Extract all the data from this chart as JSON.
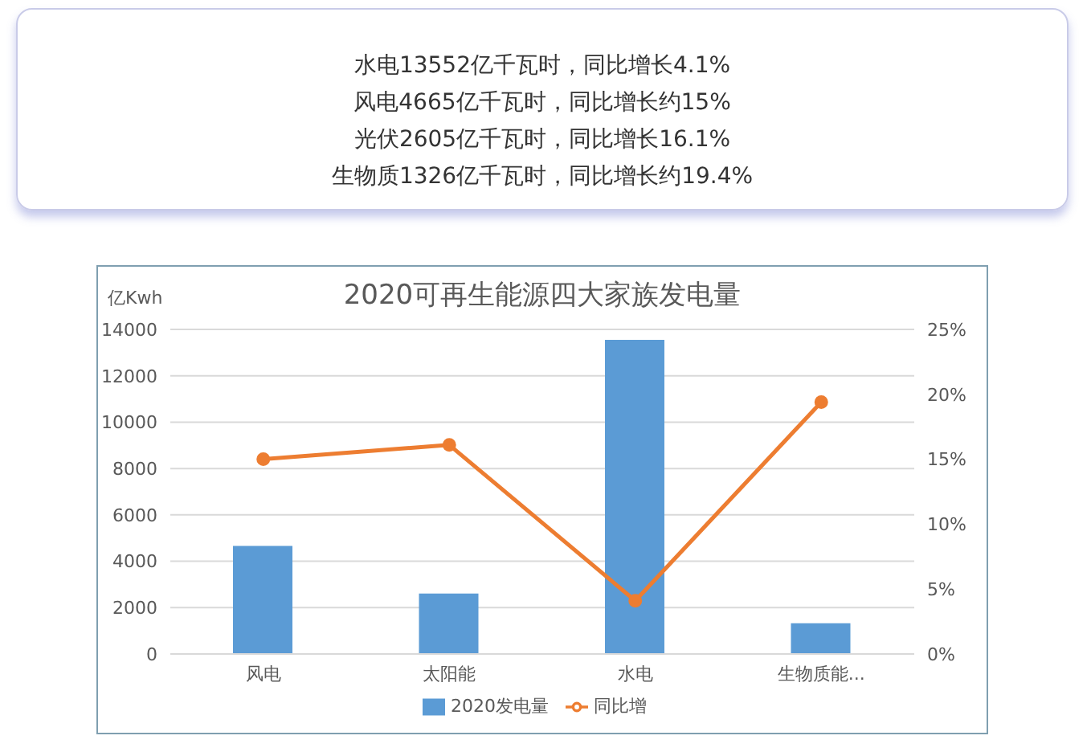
{
  "chart_data": {
    "type": "bar",
    "title": "2020可再生能源四大家族发电量",
    "ylabel": "亿Kwh",
    "annotations": [
      "水电13552亿千瓦时，同比增长4.1%",
      "风电4665亿千瓦时，同比增长约15%",
      "光伏2605亿千瓦时，同比增长16.1%",
      "生物质1326亿千瓦时，同比增长约19.4%"
    ],
    "categories": [
      "风电",
      "太阳能",
      "水电",
      "生物质能..."
    ],
    "series": [
      {
        "name": "2020发电量",
        "color": "#5b9bd5",
        "values": [
          4665,
          2605,
          13552,
          1326
        ]
      },
      {
        "name": "同比增",
        "type": "line",
        "axis": "y2",
        "color": "#ed7d31",
        "values": [
          15,
          16.1,
          4.1,
          19.4
        ]
      }
    ],
    "ylim": [
      0,
      14000
    ],
    "yticks": [
      0,
      2000,
      4000,
      6000,
      8000,
      10000,
      12000,
      14000
    ],
    "y2lim": [
      0,
      25
    ],
    "y2ticks": [
      {
        "value": 0,
        "label": "0%"
      },
      {
        "value": 5,
        "label": "5%"
      },
      {
        "value": 10,
        "label": "10%"
      },
      {
        "value": 15,
        "label": "15%"
      },
      {
        "value": 20,
        "label": "20%"
      },
      {
        "value": 25,
        "label": "25%"
      }
    ],
    "grid": "y",
    "legend": "bottom",
    "marker": "circle"
  }
}
